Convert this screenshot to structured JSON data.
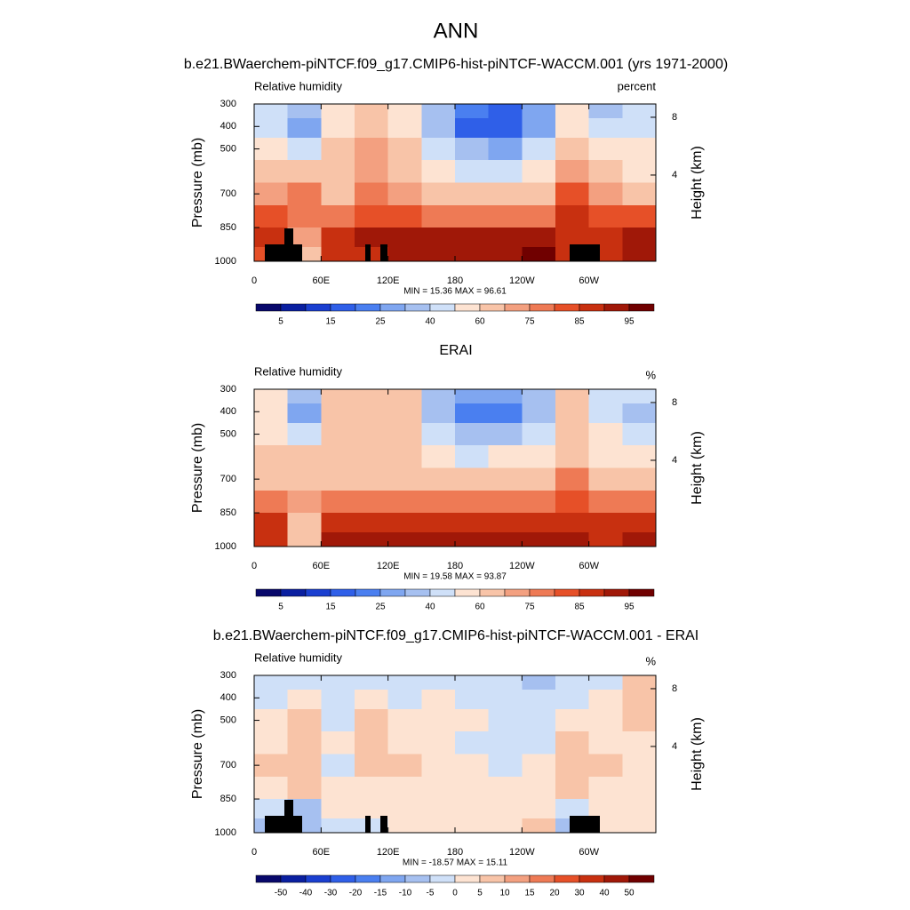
{
  "title": "ANN",
  "chart_data": [
    {
      "type": "contour",
      "title": "b.e21.BWaerchem-piNTCF.f09_g17.CMIP6-hist-piNTCF-WACCM.001 (yrs 1971-2000)",
      "left_label": "Relative humidity",
      "right_label": "percent",
      "stats": "MIN =  15.36  MAX =  96.61",
      "ylabel": "Pressure (mb)",
      "y2label": "Height (km)",
      "xlim": [
        0,
        360
      ],
      "xticks": [
        0,
        {
          "value": 60,
          "label": "60E"
        },
        {
          "value": 120,
          "label": "120E"
        },
        180,
        {
          "value": 240,
          "label": "120W"
        },
        {
          "value": 300,
          "label": "60W"
        }
      ],
      "ylim": [
        1000,
        300
      ],
      "yticks": [
        300,
        400,
        500,
        700,
        850,
        1000
      ],
      "y2lim": [
        -1.97,
        8.92
      ],
      "y2ticks": [
        4,
        8
      ],
      "x": [
        15,
        45,
        75,
        105,
        135,
        165,
        195,
        225,
        255,
        285,
        315,
        345
      ],
      "y": [
        325,
        400,
        500,
        600,
        700,
        800,
        900,
        975
      ],
      "z": [
        [
          45,
          30,
          55,
          60,
          55,
          30,
          20,
          18,
          25,
          55,
          35,
          45
        ],
        [
          45,
          25,
          55,
          65,
          55,
          30,
          18,
          15,
          25,
          55,
          40,
          40
        ],
        [
          55,
          45,
          60,
          70,
          60,
          40,
          30,
          28,
          40,
          60,
          50,
          50
        ],
        [
          65,
          65,
          62,
          72,
          65,
          55,
          45,
          45,
          55,
          70,
          60,
          55
        ],
        [
          70,
          75,
          62,
          75,
          70,
          62,
          60,
          60,
          62,
          80,
          70,
          65
        ],
        [
          80,
          75,
          78,
          82,
          80,
          78,
          75,
          75,
          78,
          85,
          82,
          80
        ],
        [
          85,
          70,
          88,
          90,
          90,
          90,
          90,
          90,
          92,
          88,
          85,
          90
        ],
        [
          80,
          65,
          85,
          88,
          90,
          92,
          92,
          94,
          95,
          85,
          88,
          92
        ]
      ],
      "levels": [
        5,
        10,
        15,
        20,
        25,
        30,
        40,
        50,
        60,
        70,
        75,
        80,
        85,
        90,
        95
      ],
      "colorbar_ticks": [
        5,
        15,
        25,
        40,
        60,
        75,
        85,
        95
      ],
      "colors": [
        "#08086b",
        "#0a1fa0",
        "#1a3fd0",
        "#2f5fe8",
        "#4a7ff0",
        "#7fa6f0",
        "#a6c0f0",
        "#cfe0f8",
        "#fde3d2",
        "#f8c4a8",
        "#f3a080",
        "#ee7a55",
        "#e65028",
        "#c83010",
        "#a01808",
        "#700000"
      ],
      "mask": true
    },
    {
      "type": "contour",
      "title": "ERAI",
      "left_label": "Relative humidity",
      "right_label": "%",
      "stats": "MIN =  19.58  MAX =  93.87",
      "ylabel": "Pressure (mb)",
      "y2label": "Height (km)",
      "xlim": [
        0,
        360
      ],
      "xticks": [
        0,
        {
          "value": 60,
          "label": "60E"
        },
        {
          "value": 120,
          "label": "120E"
        },
        180,
        {
          "value": 240,
          "label": "120W"
        },
        {
          "value": 300,
          "label": "60W"
        }
      ],
      "ylim": [
        1000,
        300
      ],
      "yticks": [
        300,
        400,
        500,
        700,
        850,
        1000
      ],
      "y2lim": [
        -1.97,
        8.92
      ],
      "y2ticks": [
        4,
        8
      ],
      "x": [
        15,
        45,
        75,
        105,
        135,
        165,
        195,
        225,
        255,
        285,
        315,
        345
      ],
      "y": [
        325,
        400,
        500,
        600,
        700,
        800,
        900,
        975
      ],
      "z": [
        [
          50,
          35,
          60,
          65,
          60,
          35,
          25,
          25,
          35,
          60,
          40,
          40
        ],
        [
          50,
          25,
          60,
          65,
          60,
          30,
          20,
          20,
          30,
          60,
          40,
          30
        ],
        [
          55,
          40,
          62,
          65,
          60,
          40,
          30,
          30,
          45,
          60,
          50,
          45
        ],
        [
          62,
          60,
          62,
          65,
          62,
          55,
          48,
          50,
          58,
          65,
          58,
          55
        ],
        [
          65,
          68,
          65,
          68,
          65,
          62,
          60,
          62,
          65,
          75,
          65,
          62
        ],
        [
          78,
          70,
          78,
          78,
          78,
          76,
          75,
          75,
          78,
          80,
          78,
          78
        ],
        [
          88,
          65,
          88,
          88,
          88,
          88,
          88,
          88,
          88,
          88,
          85,
          88
        ],
        [
          88,
          60,
          90,
          90,
          90,
          90,
          90,
          90,
          90,
          90,
          88,
          90
        ]
      ],
      "levels": [
        5,
        10,
        15,
        20,
        25,
        30,
        40,
        50,
        60,
        70,
        75,
        80,
        85,
        90,
        95
      ],
      "colorbar_ticks": [
        5,
        15,
        25,
        40,
        60,
        75,
        85,
        95
      ],
      "colors": [
        "#08086b",
        "#0a1fa0",
        "#1a3fd0",
        "#2f5fe8",
        "#4a7ff0",
        "#7fa6f0",
        "#a6c0f0",
        "#cfe0f8",
        "#fde3d2",
        "#f8c4a8",
        "#f3a080",
        "#ee7a55",
        "#e65028",
        "#c83010",
        "#a01808",
        "#700000"
      ],
      "mask": false
    },
    {
      "type": "contour",
      "title": "b.e21.BWaerchem-piNTCF.f09_g17.CMIP6-hist-piNTCF-WACCM.001 - ERAI",
      "left_label": "Relative humidity",
      "right_label": "%",
      "stats": "MIN = -18.57  MAX =  15.11",
      "ylabel": "Pressure (mb)",
      "y2label": "Height (km)",
      "xlim": [
        0,
        360
      ],
      "xticks": [
        0,
        {
          "value": 60,
          "label": "60E"
        },
        {
          "value": 120,
          "label": "120E"
        },
        180,
        {
          "value": 240,
          "label": "120W"
        },
        {
          "value": 300,
          "label": "60W"
        }
      ],
      "ylim": [
        1000,
        300
      ],
      "yticks": [
        300,
        400,
        500,
        700,
        850,
        1000
      ],
      "y2lim": [
        -1.97,
        8.92
      ],
      "y2ticks": [
        4,
        8
      ],
      "x": [
        15,
        45,
        75,
        105,
        135,
        165,
        195,
        225,
        255,
        285,
        315,
        345
      ],
      "y": [
        325,
        400,
        500,
        600,
        700,
        800,
        900,
        975
      ],
      "z": [
        [
          -5,
          -5,
          -5,
          -5,
          -5,
          -5,
          -5,
          -5,
          -10,
          -5,
          -5,
          5
        ],
        [
          -5,
          0,
          -5,
          0,
          -5,
          0,
          -5,
          -5,
          -5,
          -5,
          0,
          5
        ],
        [
          0,
          5,
          -2,
          5,
          0,
          0,
          0,
          -2,
          -5,
          0,
          0,
          5
        ],
        [
          3,
          5,
          0,
          7,
          3,
          0,
          -2,
          -5,
          -3,
          5,
          2,
          0
        ],
        [
          5,
          7,
          -3,
          7,
          5,
          0,
          0,
          -2,
          0,
          5,
          5,
          3
        ],
        [
          2,
          5,
          0,
          4,
          2,
          2,
          0,
          0,
          2,
          5,
          4,
          2
        ],
        [
          -3,
          -10,
          0,
          2,
          2,
          2,
          2,
          4,
          4,
          -5,
          0,
          2
        ],
        [
          -8,
          -10,
          -5,
          -2,
          0,
          2,
          2,
          4,
          5,
          -10,
          0,
          2
        ]
      ],
      "levels": [
        -50,
        -40,
        -30,
        -20,
        -15,
        -10,
        -5,
        0,
        5,
        10,
        15,
        20,
        30,
        40,
        50
      ],
      "colorbar_ticks": [
        -50,
        -40,
        -30,
        -20,
        -15,
        -10,
        -5,
        0,
        5,
        10,
        15,
        20,
        30,
        40,
        50
      ],
      "colors": [
        "#08086b",
        "#0a1fa0",
        "#1a3fd0",
        "#2f5fe8",
        "#4a7ff0",
        "#7fa6f0",
        "#a6c0f0",
        "#cfe0f8",
        "#fde3d2",
        "#f8c4a8",
        "#f3a080",
        "#ee7a55",
        "#e65028",
        "#c83010",
        "#a01808",
        "#700000"
      ],
      "mask": true
    }
  ]
}
